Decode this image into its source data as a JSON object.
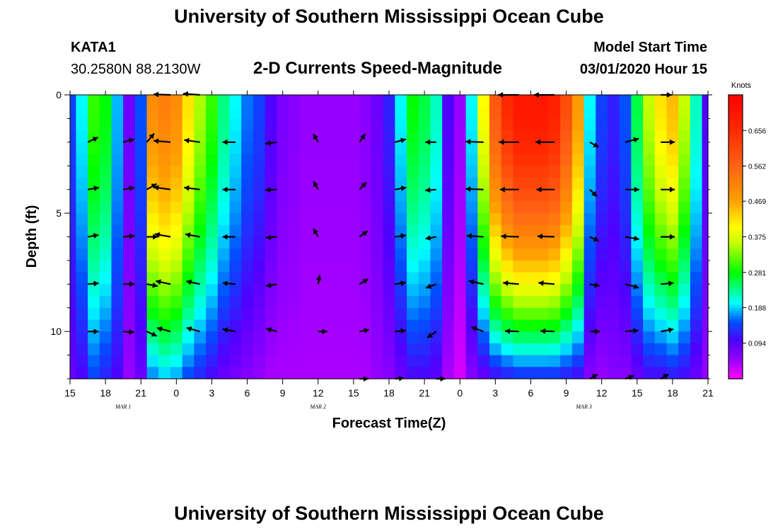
{
  "page": {
    "title_top": "University of Southern Mississippi Ocean Cube",
    "title_bottom": "University of Southern Mississippi Ocean Cube",
    "station": "KATA1",
    "coords": "30.2580N 88.2130W",
    "subtitle": "2-D Currents Speed-Magnitude",
    "model_label": "Model Start Time",
    "model_time": "03/01/2020 Hour 15"
  },
  "chart_data": {
    "type": "heatmap",
    "title": "2-D Currents Speed-Magnitude",
    "xlabel": "Forecast Time(Z)",
    "ylabel": "Depth (ft)",
    "colorbar_label": "Knots",
    "colorbar_ticks": [
      0.094,
      0.188,
      0.281,
      0.375,
      0.469,
      0.562,
      0.656
    ],
    "color_range": [
      0.0,
      0.75
    ],
    "x_range_hours": [
      0,
      54
    ],
    "x_tick_labels": [
      "15",
      "18",
      "21",
      "0",
      "3",
      "6",
      "9",
      "12",
      "15",
      "18",
      "21",
      "0",
      "3",
      "6",
      "9",
      "12",
      "15",
      "18",
      "21"
    ],
    "date_labels": [
      {
        "text": "MAR 1",
        "hour": 4.5
      },
      {
        "text": "MAR 2",
        "hour": 21
      },
      {
        "text": "MAR 3",
        "hour": 43.5
      }
    ],
    "y_range_ft": [
      0,
      12
    ],
    "y_tick_labels": [
      "0",
      "5",
      "10"
    ],
    "y_tick_values": [
      0,
      5,
      10
    ],
    "columns_hour": [
      0,
      1,
      2,
      3,
      4,
      5,
      6,
      7,
      8,
      9,
      10,
      11,
      12,
      13,
      14,
      15,
      16,
      17,
      18,
      19,
      20,
      21,
      22,
      23,
      24,
      25,
      26,
      27,
      28,
      29,
      30,
      31,
      32,
      33,
      34,
      35,
      36,
      37,
      38,
      39,
      40,
      41,
      42,
      43,
      44,
      45,
      46,
      47,
      48,
      49,
      50,
      51,
      52,
      53,
      54
    ],
    "surface_speed": [
      0.14,
      0.2,
      0.3,
      0.28,
      0.18,
      0.08,
      0.15,
      0.5,
      0.52,
      0.5,
      0.42,
      0.35,
      0.3,
      0.24,
      0.2,
      0.16,
      0.14,
      0.1,
      0.07,
      0.06,
      0.05,
      0.05,
      0.05,
      0.05,
      0.05,
      0.06,
      0.08,
      0.12,
      0.2,
      0.28,
      0.26,
      0.22,
      0.1,
      0.05,
      0.2,
      0.4,
      0.58,
      0.66,
      0.7,
      0.7,
      0.7,
      0.68,
      0.6,
      0.48,
      0.2,
      0.14,
      0.12,
      0.15,
      0.26,
      0.36,
      0.42,
      0.45,
      0.36,
      0.22,
      0.1
    ],
    "bottom_speed": [
      0.08,
      0.1,
      0.14,
      0.12,
      0.1,
      0.05,
      0.08,
      0.16,
      0.18,
      0.17,
      0.14,
      0.12,
      0.1,
      0.08,
      0.07,
      0.06,
      0.05,
      0.04,
      0.04,
      0.04,
      0.04,
      0.04,
      0.04,
      0.04,
      0.04,
      0.04,
      0.05,
      0.06,
      0.08,
      0.1,
      0.1,
      0.09,
      0.04,
      0.02,
      0.06,
      0.08,
      0.1,
      0.11,
      0.12,
      0.12,
      0.12,
      0.12,
      0.11,
      0.1,
      0.06,
      0.05,
      0.06,
      0.06,
      0.08,
      0.1,
      0.1,
      0.11,
      0.1,
      0.08,
      0.05
    ],
    "vectors": [
      {
        "hour": 1.5,
        "depth": 2,
        "dir_deg": 25,
        "speed": 0.22
      },
      {
        "hour": 1.5,
        "depth": 4,
        "dir_deg": 10,
        "speed": 0.22
      },
      {
        "hour": 1.5,
        "depth": 6,
        "dir_deg": 10,
        "speed": 0.2
      },
      {
        "hour": 1.5,
        "depth": 8,
        "dir_deg": 5,
        "speed": 0.2
      },
      {
        "hour": 1.5,
        "depth": 10,
        "dir_deg": 0,
        "speed": 0.2
      },
      {
        "hour": 4.5,
        "depth": 2,
        "dir_deg": 15,
        "speed": 0.22
      },
      {
        "hour": 4.5,
        "depth": 4,
        "dir_deg": 10,
        "speed": 0.22
      },
      {
        "hour": 4.5,
        "depth": 6,
        "dir_deg": 5,
        "speed": 0.22
      },
      {
        "hour": 4.5,
        "depth": 8,
        "dir_deg": 0,
        "speed": 0.22
      },
      {
        "hour": 4.5,
        "depth": 10,
        "dir_deg": -5,
        "speed": 0.2
      },
      {
        "hour": 6.5,
        "depth": 2,
        "dir_deg": 50,
        "speed": 0.22
      },
      {
        "hour": 6.5,
        "depth": 4,
        "dir_deg": 30,
        "speed": 0.22
      },
      {
        "hour": 6.5,
        "depth": 6,
        "dir_deg": 0,
        "speed": 0.2
      },
      {
        "hour": 6.5,
        "depth": 8,
        "dir_deg": -10,
        "speed": 0.2
      },
      {
        "hour": 6.5,
        "depth": 10,
        "dir_deg": -25,
        "speed": 0.2
      },
      {
        "hour": 8.5,
        "depth": 0,
        "dir_deg": 178,
        "speed": 0.5
      },
      {
        "hour": 8.5,
        "depth": 2,
        "dir_deg": 175,
        "speed": 0.5
      },
      {
        "hour": 8.5,
        "depth": 4,
        "dir_deg": 172,
        "speed": 0.5
      },
      {
        "hour": 8.5,
        "depth": 6,
        "dir_deg": 170,
        "speed": 0.45
      },
      {
        "hour": 8.5,
        "depth": 8,
        "dir_deg": 168,
        "speed": 0.4
      },
      {
        "hour": 8.5,
        "depth": 10,
        "dir_deg": 165,
        "speed": 0.35
      },
      {
        "hour": 11,
        "depth": 0,
        "dir_deg": 176,
        "speed": 0.5
      },
      {
        "hour": 11,
        "depth": 2,
        "dir_deg": 172,
        "speed": 0.45
      },
      {
        "hour": 11,
        "depth": 4,
        "dir_deg": 173,
        "speed": 0.45
      },
      {
        "hour": 11,
        "depth": 6,
        "dir_deg": 170,
        "speed": 0.4
      },
      {
        "hour": 11,
        "depth": 8,
        "dir_deg": 168,
        "speed": 0.35
      },
      {
        "hour": 11,
        "depth": 10,
        "dir_deg": 165,
        "speed": 0.35
      },
      {
        "hour": 14,
        "depth": 2,
        "dir_deg": 180,
        "speed": 0.3
      },
      {
        "hour": 14,
        "depth": 4,
        "dir_deg": 180,
        "speed": 0.3
      },
      {
        "hour": 14,
        "depth": 6,
        "dir_deg": 180,
        "speed": 0.3
      },
      {
        "hour": 14,
        "depth": 8,
        "dir_deg": 175,
        "speed": 0.3
      },
      {
        "hour": 14,
        "depth": 10,
        "dir_deg": 170,
        "speed": 0.3
      },
      {
        "hour": 17.5,
        "depth": 2,
        "dir_deg": 188,
        "speed": 0.22
      },
      {
        "hour": 17.5,
        "depth": 4,
        "dir_deg": 183,
        "speed": 0.22
      },
      {
        "hour": 17.5,
        "depth": 6,
        "dir_deg": 185,
        "speed": 0.2
      },
      {
        "hour": 17.5,
        "depth": 8,
        "dir_deg": 190,
        "speed": 0.2
      },
      {
        "hour": 17.5,
        "depth": 10,
        "dir_deg": 165,
        "speed": 0.2
      },
      {
        "hour": 21,
        "depth": 2,
        "dir_deg": 120,
        "speed": 0.12
      },
      {
        "hour": 21,
        "depth": 4,
        "dir_deg": 120,
        "speed": 0.12
      },
      {
        "hour": 21,
        "depth": 6,
        "dir_deg": 120,
        "speed": 0.12
      },
      {
        "hour": 21,
        "depth": 8,
        "dir_deg": 80,
        "speed": 0.1
      },
      {
        "hour": 21,
        "depth": 10,
        "dir_deg": 0,
        "speed": 0.1
      },
      {
        "hour": 24.5,
        "depth": 2,
        "dir_deg": 55,
        "speed": 0.15
      },
      {
        "hour": 24.5,
        "depth": 4,
        "dir_deg": 45,
        "speed": 0.15
      },
      {
        "hour": 24.5,
        "depth": 6,
        "dir_deg": 35,
        "speed": 0.15
      },
      {
        "hour": 24.5,
        "depth": 8,
        "dir_deg": 30,
        "speed": 0.15
      },
      {
        "hour": 24.5,
        "depth": 10,
        "dir_deg": 10,
        "speed": 0.15
      },
      {
        "hour": 24.5,
        "depth": 12,
        "dir_deg": 0,
        "speed": 0.1
      },
      {
        "hour": 27.5,
        "depth": 2,
        "dir_deg": 15,
        "speed": 0.22
      },
      {
        "hour": 27.5,
        "depth": 4,
        "dir_deg": 10,
        "speed": 0.22
      },
      {
        "hour": 27.5,
        "depth": 6,
        "dir_deg": 8,
        "speed": 0.2
      },
      {
        "hour": 27.5,
        "depth": 8,
        "dir_deg": 8,
        "speed": 0.2
      },
      {
        "hour": 27.5,
        "depth": 10,
        "dir_deg": 5,
        "speed": 0.2
      },
      {
        "hour": 27.5,
        "depth": 12,
        "dir_deg": 5,
        "speed": 0.1
      },
      {
        "hour": 31,
        "depth": 2,
        "dir_deg": 180,
        "speed": 0.2
      },
      {
        "hour": 31,
        "depth": 4,
        "dir_deg": 185,
        "speed": 0.2
      },
      {
        "hour": 31,
        "depth": 6,
        "dir_deg": 190,
        "speed": 0.2
      },
      {
        "hour": 31,
        "depth": 8,
        "dir_deg": 200,
        "speed": 0.2
      },
      {
        "hour": 31,
        "depth": 10,
        "dir_deg": 215,
        "speed": 0.2
      },
      {
        "hour": 31,
        "depth": 12,
        "dir_deg": 0,
        "speed": 0.1
      },
      {
        "hour": 35,
        "depth": 2,
        "dir_deg": 178,
        "speed": 0.55
      },
      {
        "hour": 35,
        "depth": 4,
        "dir_deg": 178,
        "speed": 0.55
      },
      {
        "hour": 35,
        "depth": 6,
        "dir_deg": 176,
        "speed": 0.5
      },
      {
        "hour": 35,
        "depth": 8,
        "dir_deg": 168,
        "speed": 0.4
      },
      {
        "hour": 35,
        "depth": 10,
        "dir_deg": 160,
        "speed": 0.3
      },
      {
        "hour": 38,
        "depth": 0,
        "dir_deg": 180,
        "speed": 0.7
      },
      {
        "hour": 38,
        "depth": 2,
        "dir_deg": 180,
        "speed": 0.65
      },
      {
        "hour": 38,
        "depth": 4,
        "dir_deg": 180,
        "speed": 0.6
      },
      {
        "hour": 38,
        "depth": 6,
        "dir_deg": 178,
        "speed": 0.55
      },
      {
        "hour": 38,
        "depth": 8,
        "dir_deg": 175,
        "speed": 0.45
      },
      {
        "hour": 38,
        "depth": 10,
        "dir_deg": 178,
        "speed": 0.35
      },
      {
        "hour": 41,
        "depth": 0,
        "dir_deg": 180,
        "speed": 0.68
      },
      {
        "hour": 41,
        "depth": 2,
        "dir_deg": 180,
        "speed": 0.6
      },
      {
        "hour": 41,
        "depth": 4,
        "dir_deg": 180,
        "speed": 0.55
      },
      {
        "hour": 41,
        "depth": 6,
        "dir_deg": 178,
        "speed": 0.5
      },
      {
        "hour": 41,
        "depth": 8,
        "dir_deg": 175,
        "speed": 0.45
      },
      {
        "hour": 41,
        "depth": 10,
        "dir_deg": 178,
        "speed": 0.35
      },
      {
        "hour": 44,
        "depth": 2,
        "dir_deg": -30,
        "speed": 0.15
      },
      {
        "hour": 44,
        "depth": 4,
        "dir_deg": -45,
        "speed": 0.15
      },
      {
        "hour": 44,
        "depth": 6,
        "dir_deg": -25,
        "speed": 0.15
      },
      {
        "hour": 44,
        "depth": 8,
        "dir_deg": -10,
        "speed": 0.15
      },
      {
        "hour": 44,
        "depth": 10,
        "dir_deg": 0,
        "speed": 0.15
      },
      {
        "hour": 44,
        "depth": 12,
        "dir_deg": 30,
        "speed": 0.1
      },
      {
        "hour": 47,
        "depth": 2,
        "dir_deg": 15,
        "speed": 0.35
      },
      {
        "hour": 47,
        "depth": 4,
        "dir_deg": 0,
        "speed": 0.35
      },
      {
        "hour": 47,
        "depth": 6,
        "dir_deg": -10,
        "speed": 0.35
      },
      {
        "hour": 47,
        "depth": 8,
        "dir_deg": -15,
        "speed": 0.35
      },
      {
        "hour": 47,
        "depth": 10,
        "dir_deg": 5,
        "speed": 0.3
      },
      {
        "hour": 47,
        "depth": 12,
        "dir_deg": 20,
        "speed": 0.1
      },
      {
        "hour": 50,
        "depth": 0,
        "dir_deg": 0,
        "speed": 0.2
      },
      {
        "hour": 50,
        "depth": 2,
        "dir_deg": 0,
        "speed": 0.35
      },
      {
        "hour": 50,
        "depth": 4,
        "dir_deg": 0,
        "speed": 0.35
      },
      {
        "hour": 50,
        "depth": 6,
        "dir_deg": 0,
        "speed": 0.35
      },
      {
        "hour": 50,
        "depth": 8,
        "dir_deg": 5,
        "speed": 0.3
      },
      {
        "hour": 50,
        "depth": 10,
        "dir_deg": 10,
        "speed": 0.3
      },
      {
        "hour": 50,
        "depth": 12,
        "dir_deg": 30,
        "speed": 0.1
      }
    ]
  }
}
